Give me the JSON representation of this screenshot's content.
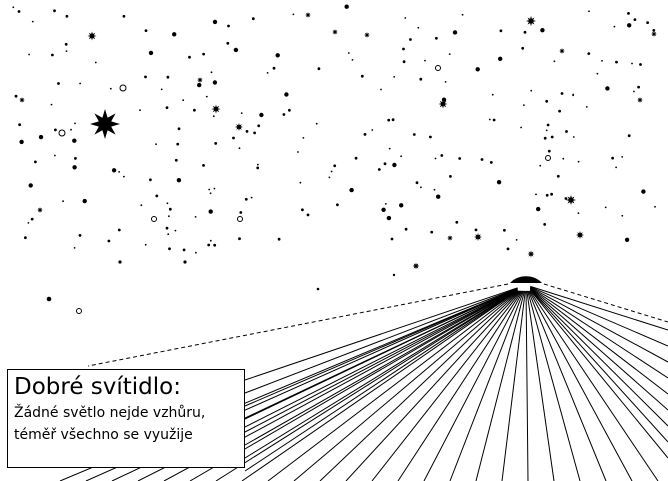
{
  "caption": {
    "title": "Dobré svítidlo:",
    "line1": "Žádné světlo nejde vzhůru,",
    "line2": "téměř všechno se využije"
  },
  "colors": {
    "background": "#ffffff",
    "ink": "#000000"
  },
  "illustration": {
    "subject": "night sky with stars above a shielded lamp directing light downward",
    "icons": [
      "star-icon",
      "lamp-icon"
    ]
  }
}
